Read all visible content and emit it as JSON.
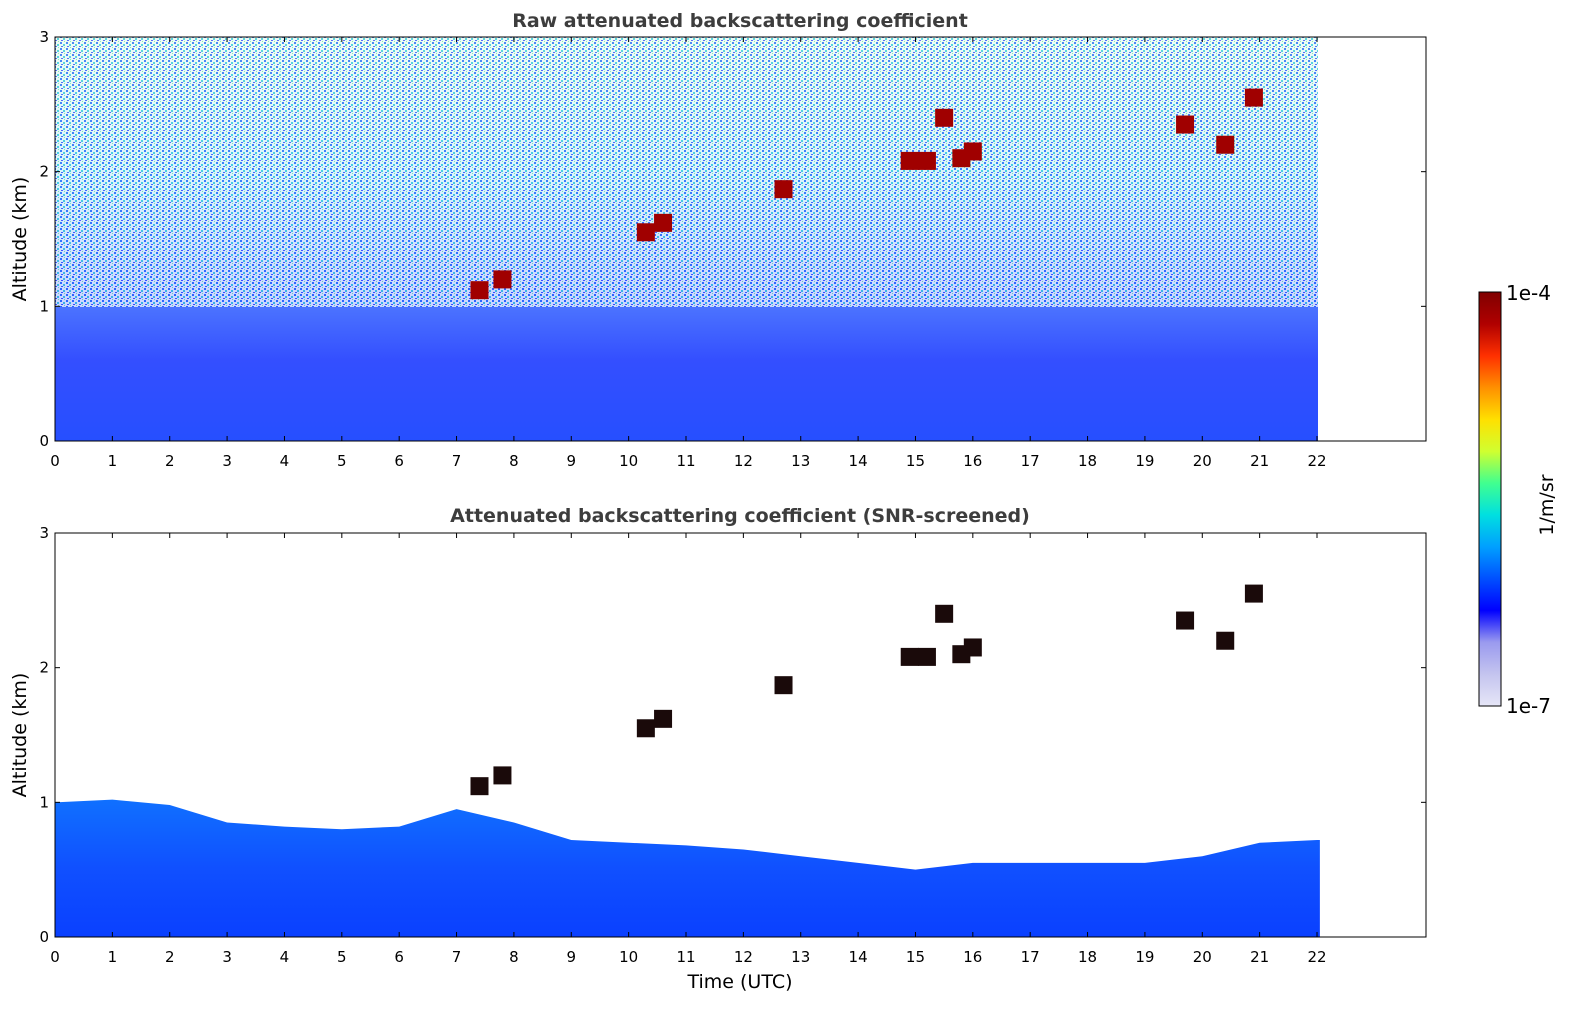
{
  "chart_data": [
    {
      "type": "heatmap",
      "title": "Raw attenuated backscattering coefficient",
      "xlabel": "",
      "ylabel": "Altitude (km)",
      "xlim": [
        0,
        23.9
      ],
      "ylim": [
        0,
        3
      ],
      "x_ticks": [
        "0",
        "1",
        "2",
        "3",
        "4",
        "5",
        "6",
        "7",
        "8",
        "9",
        "10",
        "11",
        "12",
        "13",
        "14",
        "15",
        "16",
        "17",
        "18",
        "19",
        "20",
        "21",
        "22"
      ],
      "y_ticks": [
        "0",
        "1",
        "2",
        "3"
      ],
      "data_extent_hours": 22.05,
      "cloud_features": [
        {
          "t": 7.4,
          "alt": 1.12
        },
        {
          "t": 7.8,
          "alt": 1.2
        },
        {
          "t": 10.3,
          "alt": 1.55
        },
        {
          "t": 10.6,
          "alt": 1.62
        },
        {
          "t": 12.7,
          "alt": 1.87
        },
        {
          "t": 14.9,
          "alt": 2.08
        },
        {
          "t": 15.2,
          "alt": 2.08
        },
        {
          "t": 15.5,
          "alt": 2.4
        },
        {
          "t": 15.8,
          "alt": 2.1
        },
        {
          "t": 16.0,
          "alt": 2.15
        },
        {
          "t": 19.7,
          "alt": 2.35
        },
        {
          "t": 20.4,
          "alt": 2.2
        },
        {
          "t": 20.9,
          "alt": 2.55
        }
      ]
    },
    {
      "type": "heatmap",
      "title": "Attenuated backscattering coefficient (SNR-screened)",
      "xlabel": "Time (UTC)",
      "ylabel": "Altitude (km)",
      "xlim": [
        0,
        23.9
      ],
      "ylim": [
        0,
        3
      ],
      "x_ticks": [
        "0",
        "1",
        "2",
        "3",
        "4",
        "5",
        "6",
        "7",
        "8",
        "9",
        "10",
        "11",
        "12",
        "13",
        "14",
        "15",
        "16",
        "17",
        "18",
        "19",
        "20",
        "21",
        "22"
      ],
      "y_ticks": [
        "0",
        "1",
        "2",
        "3"
      ],
      "data_extent_hours": 22.05,
      "boundary_layer_top_km": [
        {
          "t": 0,
          "alt": 1.0
        },
        {
          "t": 1,
          "alt": 1.02
        },
        {
          "t": 2,
          "alt": 0.98
        },
        {
          "t": 3,
          "alt": 0.85
        },
        {
          "t": 4,
          "alt": 0.82
        },
        {
          "t": 5,
          "alt": 0.8
        },
        {
          "t": 6,
          "alt": 0.82
        },
        {
          "t": 7,
          "alt": 0.95
        },
        {
          "t": 8,
          "alt": 0.85
        },
        {
          "t": 9,
          "alt": 0.72
        },
        {
          "t": 10,
          "alt": 0.7
        },
        {
          "t": 11,
          "alt": 0.68
        },
        {
          "t": 12,
          "alt": 0.65
        },
        {
          "t": 13,
          "alt": 0.6
        },
        {
          "t": 14,
          "alt": 0.55
        },
        {
          "t": 15,
          "alt": 0.5
        },
        {
          "t": 16,
          "alt": 0.55
        },
        {
          "t": 17,
          "alt": 0.55
        },
        {
          "t": 18,
          "alt": 0.55
        },
        {
          "t": 19,
          "alt": 0.55
        },
        {
          "t": 20,
          "alt": 0.6
        },
        {
          "t": 21,
          "alt": 0.7
        },
        {
          "t": 22,
          "alt": 0.72
        }
      ],
      "cloud_features": [
        {
          "t": 7.4,
          "alt": 1.12
        },
        {
          "t": 7.8,
          "alt": 1.2
        },
        {
          "t": 10.3,
          "alt": 1.55
        },
        {
          "t": 10.6,
          "alt": 1.62
        },
        {
          "t": 12.7,
          "alt": 1.87
        },
        {
          "t": 14.9,
          "alt": 2.08
        },
        {
          "t": 15.2,
          "alt": 2.08
        },
        {
          "t": 15.5,
          "alt": 2.4
        },
        {
          "t": 15.8,
          "alt": 2.1
        },
        {
          "t": 16.0,
          "alt": 2.15
        },
        {
          "t": 19.7,
          "alt": 2.35
        },
        {
          "t": 20.4,
          "alt": 2.2
        },
        {
          "t": 20.9,
          "alt": 2.55
        }
      ]
    }
  ],
  "colorbar": {
    "label": "1/m/sr",
    "max_label": "1e-4",
    "min_label": "1e-7",
    "scale": "log",
    "colors": [
      "#e6e6f7",
      "#c4c4ef",
      "#9a9aef",
      "#0000ff",
      "#0050ff",
      "#00a0ff",
      "#00e0e0",
      "#40ff90",
      "#d0ff30",
      "#ffe000",
      "#ff9000",
      "#ff3000",
      "#b00000",
      "#800000"
    ]
  }
}
